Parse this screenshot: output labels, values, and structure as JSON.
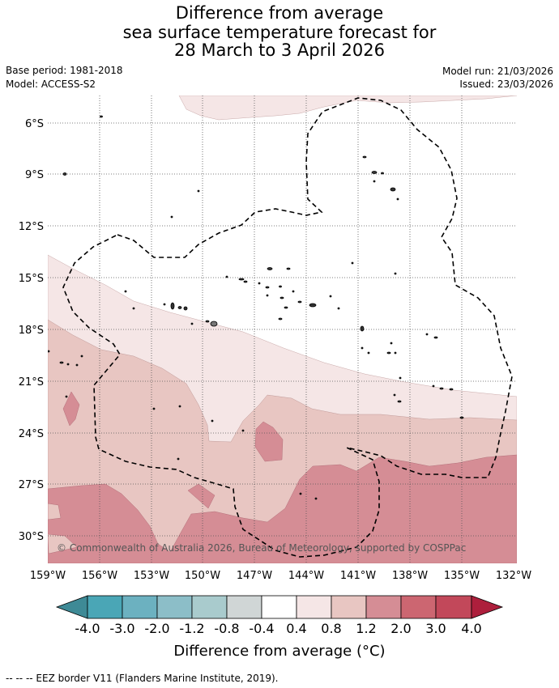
{
  "title": {
    "line1": "Difference from average",
    "line2": "sea surface temperature forecast for",
    "line3": "28 March to 3 April 2026"
  },
  "meta": {
    "base_period": "Base period: 1981-2018",
    "model": "Model: ACCESS-S2",
    "model_run": "Model run: 21/03/2026",
    "issued": "Issued: 23/03/2026"
  },
  "map": {
    "lat_labels": [
      "6°S",
      "9°S",
      "12°S",
      "15°S",
      "18°S",
      "21°S",
      "24°S",
      "27°S",
      "30°S"
    ],
    "lon_labels": [
      "159°W",
      "156°W",
      "153°W",
      "150°W",
      "147°W",
      "144°W",
      "141°W",
      "138°W",
      "135°W",
      "132°W"
    ],
    "copyright": "© Commonwealth of Australia 2026, Bureau of Meteorology, supported by COSPPac"
  },
  "colorbar": {
    "colors": [
      "#3e8a96",
      "#4aa6b6",
      "#6cb1c0",
      "#8cbec8",
      "#a9cbcd",
      "#d0d6d6",
      "#ffffff",
      "#f5e6e6",
      "#e8c6c2",
      "#d58d95",
      "#cc6671",
      "#c2485a",
      "#ad1f3c"
    ],
    "tick_labels": [
      "-4.0",
      "-3.0",
      "-2.0",
      "-1.2",
      "-0.8",
      "-0.4",
      "0.4",
      "0.8",
      "1.2",
      "2.0",
      "3.0",
      "4.0"
    ],
    "label": "Difference from average (°C)"
  },
  "footer": {
    "legend": "--  --  -- EEZ border V11 (Flanders Marine Institute, 2019)."
  }
}
